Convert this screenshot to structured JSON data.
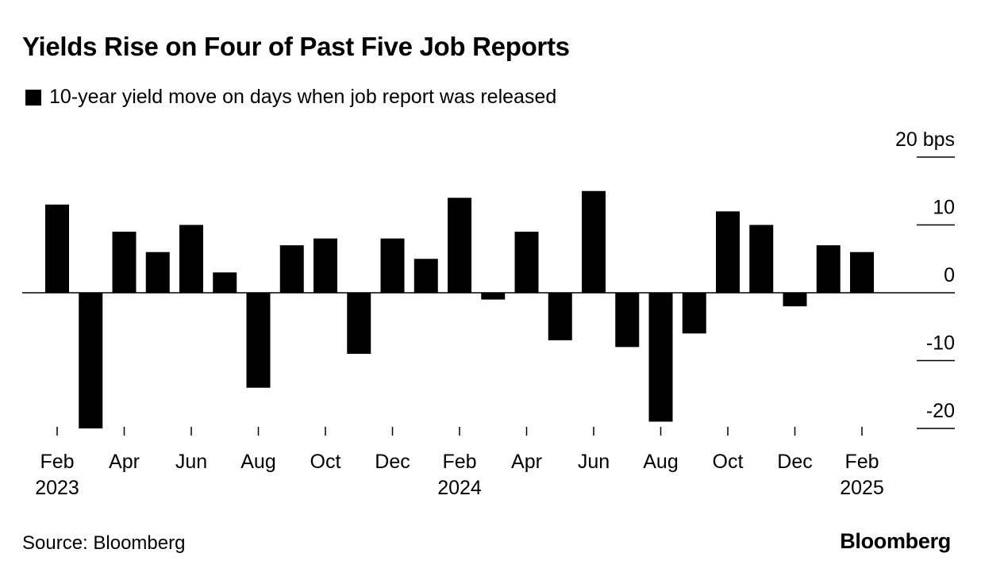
{
  "title": "Yields Rise on Four of Past Five Job Reports",
  "legend_label": "10-year yield move on days when job report was released",
  "source": "Source: Bloomberg",
  "brand": "Bloomberg",
  "chart_data": {
    "type": "bar",
    "title": "Yields Rise on Four of Past Five Job Reports",
    "series": [
      {
        "name": "10-year yield move on days when job report was released",
        "color": "#000000",
        "values": [
          13,
          -20,
          9,
          6,
          10,
          3,
          -14,
          7,
          8,
          -9,
          8,
          5,
          14,
          -1,
          9,
          -7,
          15,
          -8,
          -19,
          -6,
          12,
          10,
          -2,
          7,
          6
        ]
      }
    ],
    "categories": [
      "Feb 2023",
      "Mar 2023",
      "Apr 2023",
      "May 2023",
      "Jun 2023",
      "Jul 2023",
      "Aug 2023",
      "Sep 2023",
      "Oct 2023",
      "Nov 2023",
      "Dec 2023",
      "Jan 2024",
      "Feb 2024",
      "Mar 2024",
      "Apr 2024",
      "May 2024",
      "Jun 2024",
      "Jul 2024",
      "Aug 2024",
      "Sep 2024",
      "Oct 2024",
      "Nov 2024",
      "Dec 2024",
      "Jan 2025",
      "Feb 2025"
    ],
    "ylim": [
      -20,
      20
    ],
    "y_ticks": [
      {
        "value": 20,
        "label": "20 bps"
      },
      {
        "value": 10,
        "label": "10"
      },
      {
        "value": 0,
        "label": "0"
      },
      {
        "value": -10,
        "label": "-10"
      },
      {
        "value": -20,
        "label": "-20"
      }
    ],
    "x_ticks": [
      {
        "index": 0,
        "label": "Feb",
        "year": "2023"
      },
      {
        "index": 2,
        "label": "Apr",
        "year": ""
      },
      {
        "index": 4,
        "label": "Jun",
        "year": ""
      },
      {
        "index": 6,
        "label": "Aug",
        "year": ""
      },
      {
        "index": 8,
        "label": "Oct",
        "year": ""
      },
      {
        "index": 10,
        "label": "Dec",
        "year": ""
      },
      {
        "index": 12,
        "label": "Feb",
        "year": "2024"
      },
      {
        "index": 14,
        "label": "Apr",
        "year": ""
      },
      {
        "index": 16,
        "label": "Jun",
        "year": ""
      },
      {
        "index": 18,
        "label": "Aug",
        "year": ""
      },
      {
        "index": 20,
        "label": "Oct",
        "year": ""
      },
      {
        "index": 22,
        "label": "Dec",
        "year": ""
      },
      {
        "index": 24,
        "label": "Feb",
        "year": "2025"
      }
    ],
    "y_axis_side": "right",
    "legend_position": "top-left",
    "grid": false
  }
}
